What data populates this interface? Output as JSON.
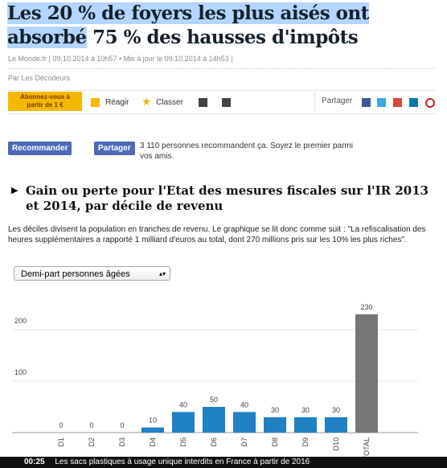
{
  "header": {
    "title_line1": "Les 20 % de foyers les plus aisés ont",
    "title_line2_highlighted": "absorbé",
    "title_line2_rest": "75 % des hausses d'impôts",
    "meta": "Le Monde.fr | 09.10.2014 à 10h57 • Mis à jour le 09.10.2014 à 14h53 |",
    "byline": "Par Les Décodeurs"
  },
  "toolbar": {
    "subscribe": "Abonnez-vous à partir de 1 €",
    "react": "Réagir",
    "save": "Classer",
    "share": "Partager"
  },
  "facebook": {
    "recommend": "Recommander",
    "share": "Partager",
    "text": "3 110 personnes recommandent ça. Soyez le premier parmi vos amis."
  },
  "chart_data": {
    "type": "bar",
    "title": "Gain ou perte pour l'Etat des mesures fiscales sur l'IR 2013 et 2014, par décile de revenu",
    "description": "Les déciles divisent la population en tranches de revenu. Le graphique se lit donc comme suit : \"La refiscalisation des heures supplémentaires a rapporté 1 milliard d'euros au total, dont 270 millions pris sur les 10% les plus riches\".",
    "selector": "Demi-part personnes âgées",
    "categories": [
      "D1",
      "D2",
      "D3",
      "D4",
      "D5",
      "D6",
      "D7",
      "D8",
      "D9",
      "D10",
      "TOTAL"
    ],
    "values": [
      0,
      0,
      0,
      10,
      40,
      50,
      40,
      30,
      30,
      30,
      230
    ],
    "colors": [
      "#1f80c4",
      "#1f80c4",
      "#1f80c4",
      "#1f80c4",
      "#1f80c4",
      "#1f80c4",
      "#1f80c4",
      "#1f80c4",
      "#1f80c4",
      "#1f80c4",
      "#777777"
    ],
    "ylim": [
      0,
      250
    ],
    "yticks": [
      100,
      200
    ],
    "grid": true
  },
  "ticker": {
    "time": "00:25",
    "text": "Les sacs plastiques à usage unique interdits en France à partir de 2016"
  }
}
